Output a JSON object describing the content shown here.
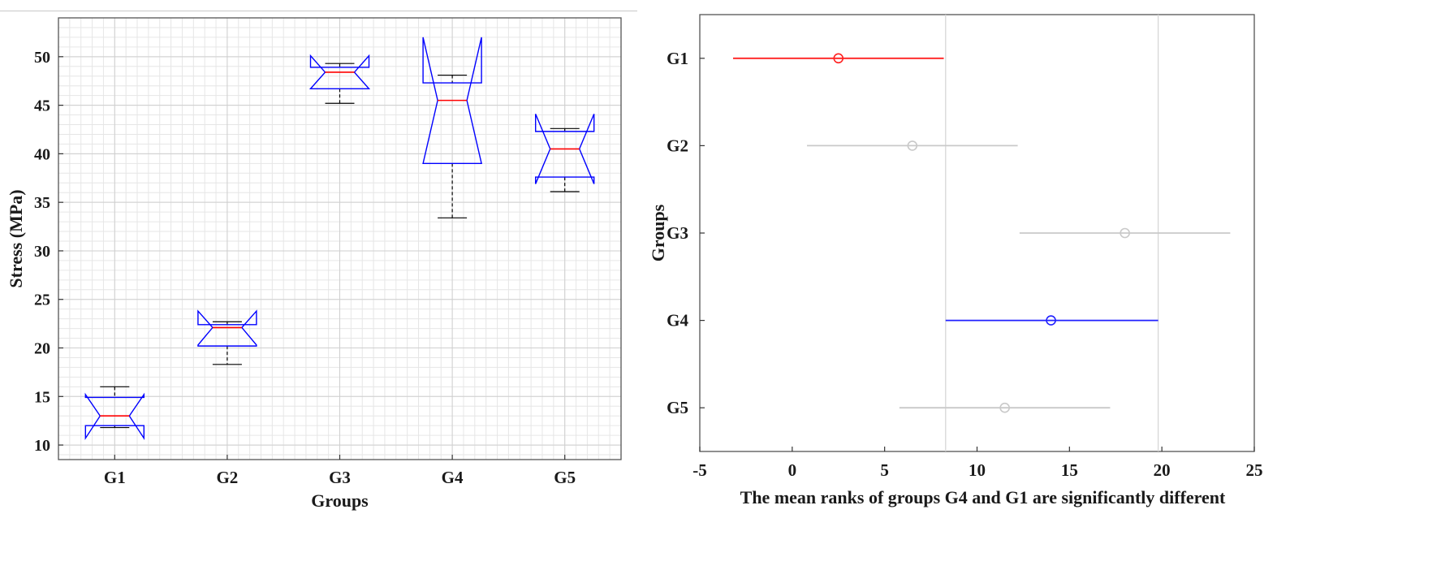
{
  "chart_data": [
    {
      "type": "boxplot",
      "notched": true,
      "xlabel": "Groups",
      "ylabel": "Stress (MPa)",
      "categories": [
        "G1",
        "G2",
        "G3",
        "G4",
        "G5"
      ],
      "ylim": [
        8.5,
        54
      ],
      "yticks": [
        10,
        15,
        20,
        25,
        30,
        35,
        40,
        45,
        50
      ],
      "grid": "major and minor",
      "colors": {
        "box": "#0000ff",
        "median": "#ff0000",
        "whisker": "#000000",
        "grid": "#d9d9d9"
      },
      "boxes": [
        {
          "name": "G1",
          "min": 11.8,
          "q1": 12.0,
          "median": 13.0,
          "q3": 14.9,
          "max": 16.0,
          "notch_low": 10.7,
          "notch_high": 15.2
        },
        {
          "name": "G2",
          "min": 18.3,
          "q1": 20.2,
          "median": 22.1,
          "q3": 22.4,
          "max": 22.7,
          "notch_low": 20.3,
          "notch_high": 23.8
        },
        {
          "name": "G3",
          "min": 45.2,
          "q1": 46.7,
          "median": 48.4,
          "q3": 48.9,
          "max": 49.3,
          "notch_low": 46.7,
          "notch_high": 50.1
        },
        {
          "name": "G4",
          "min": 33.4,
          "q1": 39.0,
          "median": 45.5,
          "q3": 47.3,
          "max": 48.1,
          "notch_low": 39.0,
          "notch_high": 52.0
        },
        {
          "name": "G5",
          "min": 36.1,
          "q1": 37.6,
          "median": 40.5,
          "q3": 42.3,
          "max": 42.6,
          "notch_low": 36.9,
          "notch_high": 44.1
        }
      ]
    },
    {
      "type": "interval",
      "xlabel": "The mean ranks of groups G4 and G1 are significantly different",
      "ylabel": "Groups",
      "categories": [
        "G1",
        "G2",
        "G3",
        "G4",
        "G5"
      ],
      "xlim": [
        -5,
        25
      ],
      "xticks": [
        -5,
        0,
        5,
        10,
        15,
        20,
        25
      ],
      "reference_lines": [
        8.3,
        19.8
      ],
      "colors": {
        "highlight": "#ff2020",
        "significant": "#2020ff",
        "other": "#c9c9c9",
        "reference": "#d4d4d4"
      },
      "intervals": [
        {
          "group": "G1",
          "mean": 2.5,
          "low": -3.2,
          "high": 8.2,
          "status": "highlight"
        },
        {
          "group": "G2",
          "mean": 6.5,
          "low": 0.8,
          "high": 12.2,
          "status": "other"
        },
        {
          "group": "G3",
          "mean": 18.0,
          "low": 12.3,
          "high": 23.7,
          "status": "other"
        },
        {
          "group": "G4",
          "mean": 14.0,
          "low": 8.3,
          "high": 19.8,
          "status": "significant"
        },
        {
          "group": "G5",
          "mean": 11.5,
          "low": 5.8,
          "high": 17.2,
          "status": "other"
        }
      ]
    }
  ]
}
